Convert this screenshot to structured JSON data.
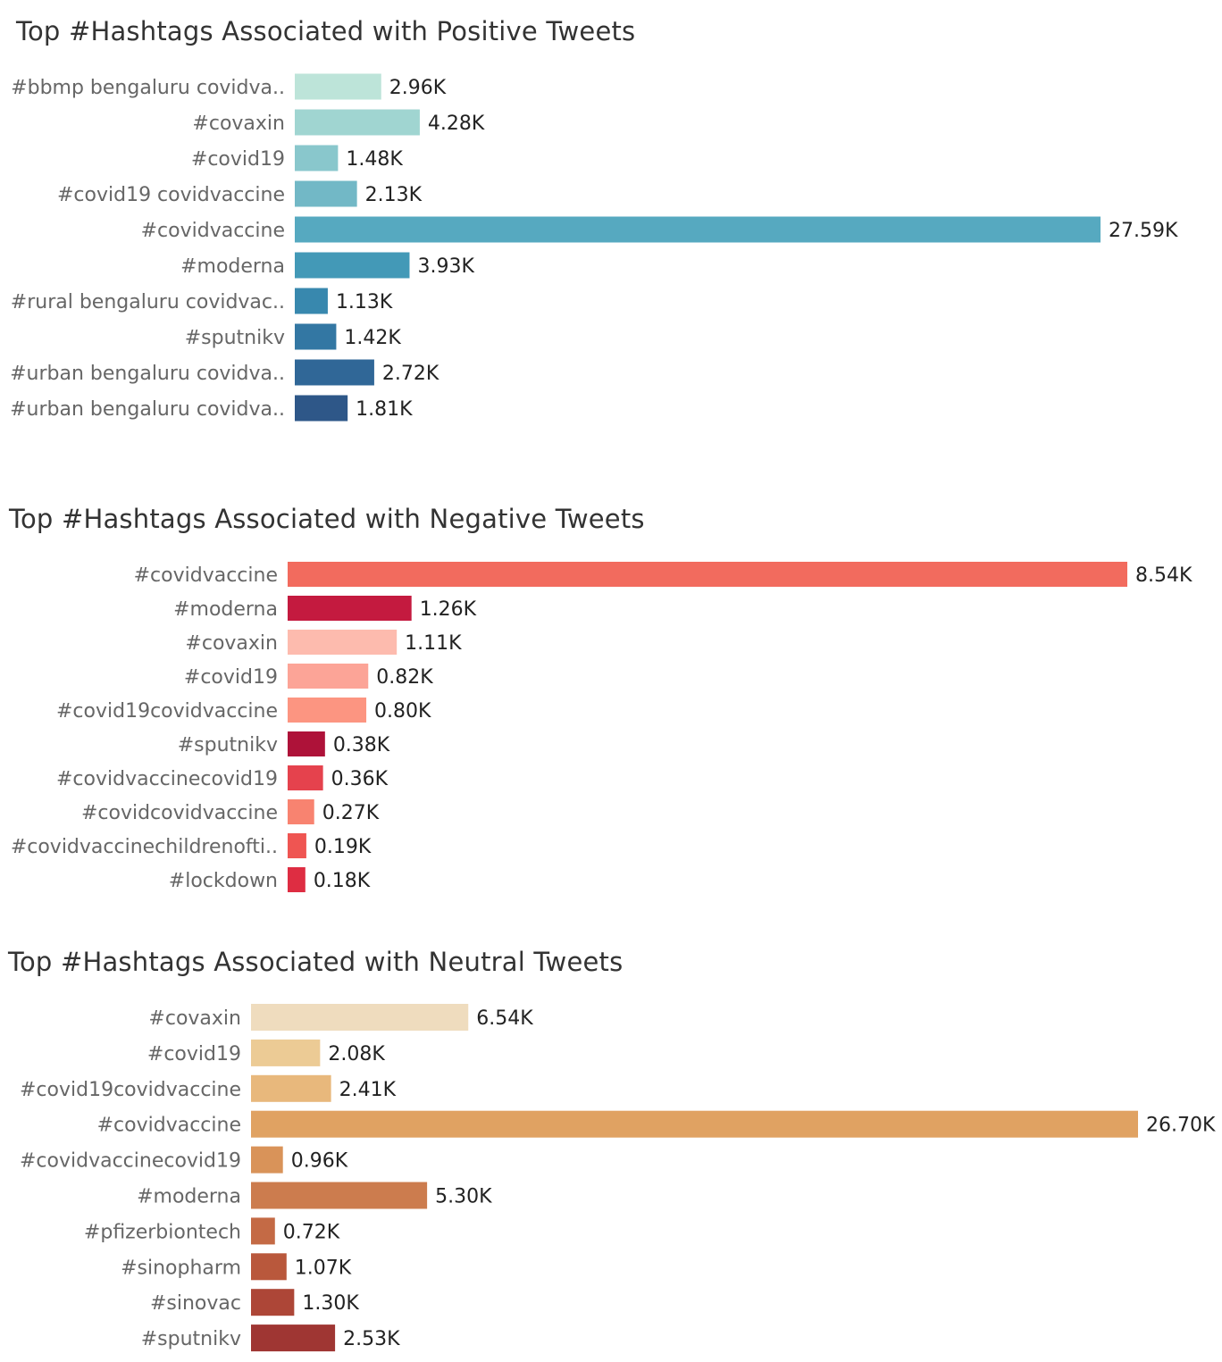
{
  "chart_data": [
    {
      "type": "bar",
      "orientation": "horizontal",
      "title": "Top #Hashtags Associated with Positive Tweets",
      "categories": [
        "#bbmp bengaluru covidva..",
        "#covaxin",
        "#covid19",
        "#covid19 covidvaccine",
        "#covidvaccine",
        "#moderna",
        "#rural bengaluru covidvac..",
        "#sputnikv",
        "#urban bengaluru covidva..",
        "#urban bengaluru covidva.."
      ],
      "values": [
        2.96,
        4.28,
        1.48,
        2.13,
        27.59,
        3.93,
        1.13,
        1.42,
        2.72,
        1.81
      ],
      "value_labels": [
        "2.96K",
        "4.28K",
        "1.48K",
        "2.13K",
        "27.59K",
        "3.93K",
        "1.13K",
        "1.42K",
        "2.72K",
        "1.81K"
      ],
      "colors": [
        "#bde4d9",
        "#a0d5d1",
        "#89c7cc",
        "#72b8c6",
        "#56a9c0",
        "#4399b7",
        "#3888ae",
        "#3377a3",
        "#306797",
        "#2e5788"
      ],
      "xlim": [
        0,
        27.59
      ],
      "grid": false,
      "legend": "none"
    },
    {
      "type": "bar",
      "orientation": "horizontal",
      "title": "Top #Hashtags Associated with Negative Tweets",
      "categories": [
        "#covidvaccine",
        "#moderna",
        "#covaxin",
        "#covid19",
        "#covid19covidvaccine",
        "#sputnikv",
        "#covidvaccinecovid19",
        "#covidcovidvaccine",
        "#covidvaccinechildrenofti..",
        "#lockdown"
      ],
      "values": [
        8.54,
        1.26,
        1.11,
        0.82,
        0.8,
        0.38,
        0.36,
        0.27,
        0.19,
        0.18
      ],
      "value_labels": [
        "8.54K",
        "1.26K",
        "1.11K",
        "0.82K",
        "0.80K",
        "0.38K",
        "0.36K",
        "0.27K",
        "0.19K",
        "0.18K"
      ],
      "colors": [
        "#f26b5e",
        "#c41a3f",
        "#fdbbae",
        "#fca497",
        "#fc9581",
        "#ae1239",
        "#e5424d",
        "#f88370",
        "#ef5552",
        "#de2d42"
      ],
      "xlim": [
        0,
        8.54
      ],
      "grid": false,
      "legend": "none"
    },
    {
      "type": "bar",
      "orientation": "horizontal",
      "title": "Top #Hashtags Associated with Neutral Tweets",
      "categories": [
        "#covaxin",
        "#covid19",
        "#covid19covidvaccine",
        "#covidvaccine",
        "#covidvaccinecovid19",
        "#moderna",
        "#pfizerbiontech",
        "#sinopharm",
        "#sinovac",
        "#sputnikv"
      ],
      "values": [
        6.54,
        2.08,
        2.41,
        26.7,
        0.96,
        5.3,
        0.72,
        1.07,
        1.3,
        2.53
      ],
      "value_labels": [
        "6.54K",
        "2.08K",
        "2.41K",
        "26.70K",
        "0.96K",
        "5.30K",
        "0.72K",
        "1.07K",
        "1.30K",
        "2.53K"
      ],
      "colors": [
        "#efdcbe",
        "#eccb95",
        "#e8b87c",
        "#e0a262",
        "#d99359",
        "#cc7c4e",
        "#c46a45",
        "#b9583c",
        "#ad4637",
        "#9f3633"
      ],
      "xlim": [
        0,
        26.7
      ],
      "grid": false,
      "legend": "none"
    }
  ]
}
